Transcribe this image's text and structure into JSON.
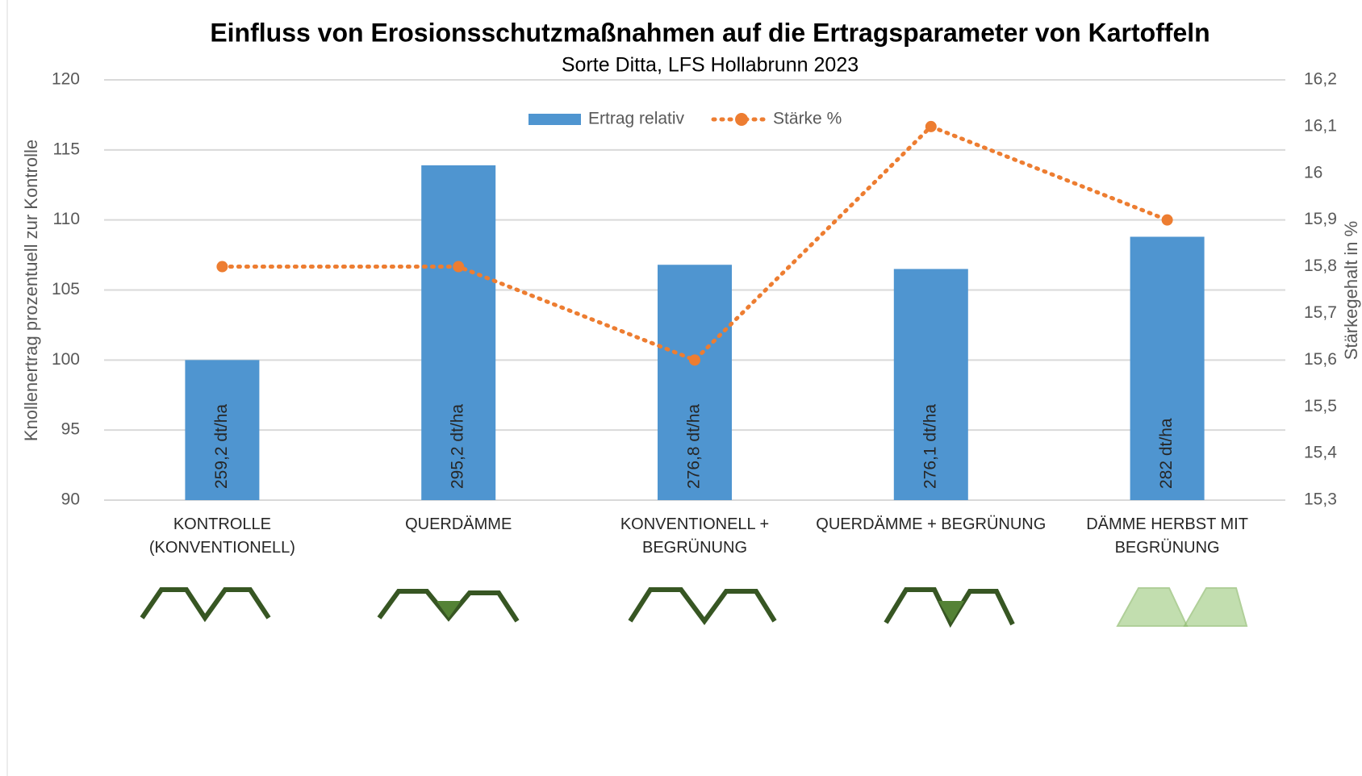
{
  "chart_data": {
    "type": "bar",
    "title": "Einfluss von Erosionsschutzmaßnahmen auf die Ertragsparameter von Kartoffeln",
    "subtitle": "Sorte Ditta, LFS Hollabrunn 2023",
    "y_label": "Knollenertrag prozentuell zur Kontrolle",
    "y2_label": "Stärkegehalt in %",
    "categories": [
      "KONTROLLE\n(KONVENTIONELL)",
      "QUERDÄMME",
      "KONVENTIONELL +\nBEGRÜNUNG",
      "QUERDÄMME + BEGRÜNUNG",
      "DÄMME HERBST MIT\nBEGRÜNUNG"
    ],
    "series": [
      {
        "name": "Ertrag relativ",
        "type": "bar",
        "color": "#4f95d0",
        "values": [
          100,
          113.9,
          106.8,
          106.5,
          108.8
        ],
        "bar_labels": [
          "259,2 dt/ha",
          "295,2 dt/ha",
          "276,8 dt/ha",
          "276,1 dt/ha",
          "282 dt/ha"
        ]
      },
      {
        "name": "Stärke %",
        "type": "line",
        "axis": "y2",
        "color": "#ed7d31",
        "values": [
          15.8,
          15.8,
          15.6,
          16.1,
          15.9
        ]
      }
    ],
    "ylim": [
      90,
      120
    ],
    "yticks": [
      90,
      95,
      100,
      105,
      110,
      115,
      120
    ],
    "y2lim": [
      15.3,
      16.2
    ],
    "y2ticks": [
      {
        "value": 15.3,
        "label": "15,3"
      },
      {
        "value": 15.4,
        "label": "15,4"
      },
      {
        "value": 15.5,
        "label": "15,5"
      },
      {
        "value": 15.6,
        "label": "15,6"
      },
      {
        "value": 15.7,
        "label": "15,7"
      },
      {
        "value": 15.8,
        "label": "15,8"
      },
      {
        "value": 15.9,
        "label": "15,9"
      },
      16,
      {
        "value": 16.1,
        "label": "16,1"
      },
      {
        "value": 16.2,
        "label": "16,2"
      }
    ],
    "grid": true,
    "legend": "top"
  }
}
